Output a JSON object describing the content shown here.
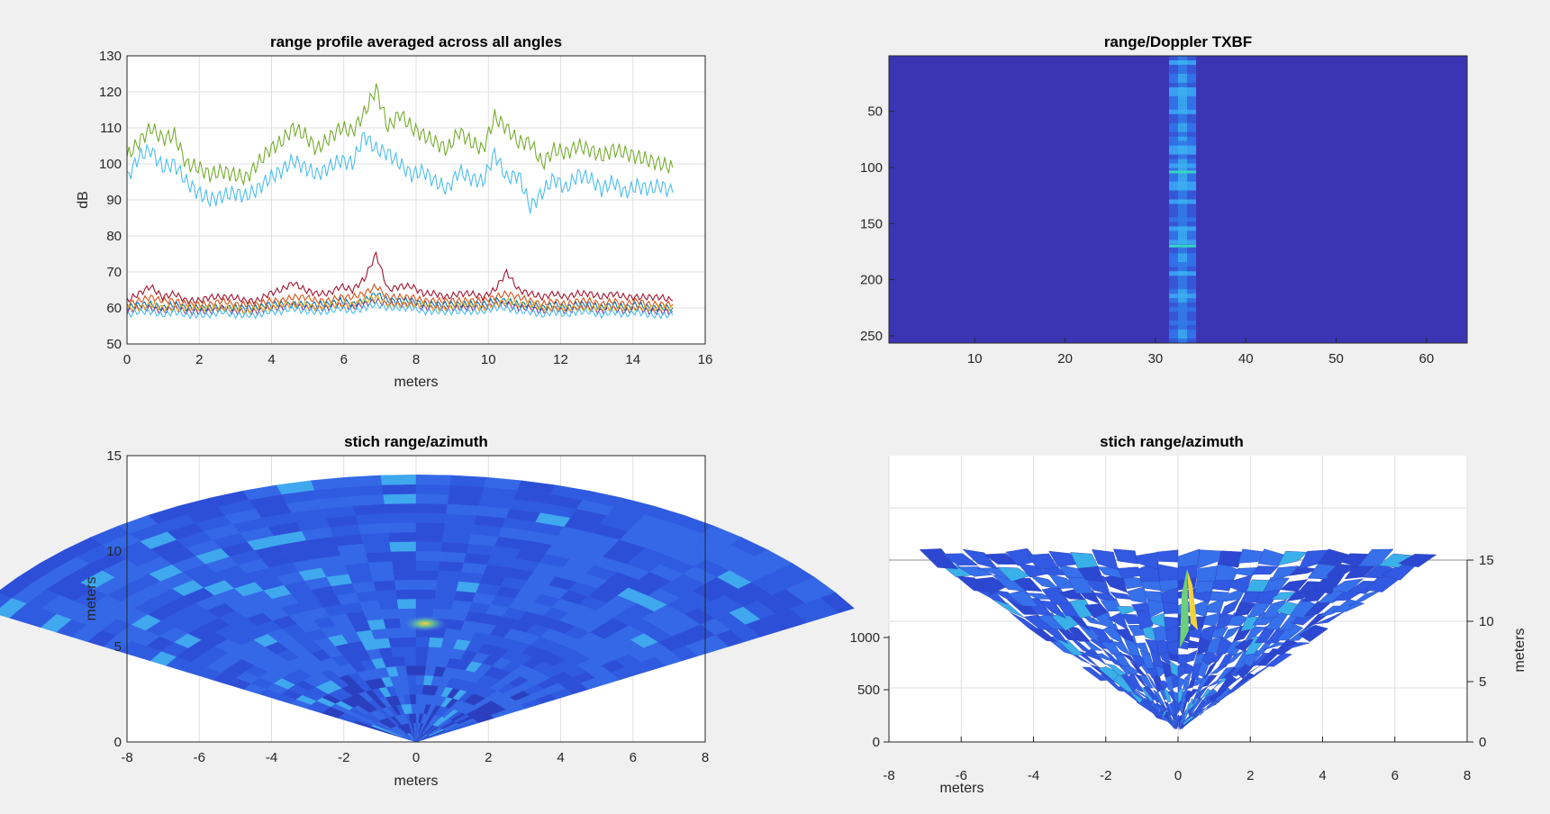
{
  "chart_data": [
    {
      "type": "line",
      "title": "range profile averaged across all angles",
      "xlabel": "meters",
      "ylabel": "dB",
      "xlim": [
        0,
        16
      ],
      "ylim": [
        50,
        130
      ],
      "xticks": [
        "0",
        "2",
        "4",
        "6",
        "8",
        "10",
        "12",
        "14",
        "16"
      ],
      "yticks": [
        "50",
        "60",
        "70",
        "80",
        "90",
        "100",
        "110",
        "120",
        "130"
      ],
      "grid": true,
      "x_end": 15.1,
      "series": [
        {
          "color": "#77ac30",
          "values": [
            102,
            106,
            110,
            107,
            108,
            100,
            99,
            97,
            98,
            97,
            96,
            100,
            104,
            106,
            110,
            108,
            104,
            107,
            110,
            109,
            114,
            121,
            110,
            114,
            110,
            108,
            106,
            104,
            109,
            106,
            104,
            113,
            110,
            106,
            106,
            100,
            104,
            103,
            105,
            104,
            102,
            104,
            103,
            102,
            101,
            100,
            99
          ]
        },
        {
          "color": "#4dbeee",
          "values": [
            96,
            102,
            104,
            99,
            100,
            95,
            92,
            90,
            91,
            92,
            91,
            93,
            96,
            98,
            101,
            99,
            97,
            99,
            101,
            100,
            108,
            104,
            103,
            100,
            97,
            98,
            95,
            93,
            98,
            96,
            95,
            103,
            96,
            97,
            88,
            92,
            96,
            93,
            97,
            96,
            93,
            95,
            92,
            94,
            93,
            94,
            92
          ]
        },
        {
          "color": "#a2142f",
          "values": [
            62,
            64,
            66,
            63,
            64,
            62,
            62,
            63,
            63,
            63,
            62,
            62,
            64,
            65,
            67,
            65,
            64,
            64,
            66,
            65,
            68,
            75,
            65,
            66,
            66,
            64,
            64,
            63,
            64,
            64,
            63,
            65,
            70,
            65,
            64,
            63,
            64,
            63,
            64,
            64,
            63,
            64,
            63,
            63,
            63,
            63,
            62
          ]
        },
        {
          "color": "#d95319",
          "values": [
            61,
            62,
            63,
            62,
            62,
            61,
            61,
            61,
            62,
            61,
            61,
            61,
            62,
            62,
            63,
            63,
            62,
            62,
            63,
            63,
            64,
            66,
            63,
            63,
            63,
            62,
            62,
            62,
            62,
            62,
            62,
            63,
            64,
            63,
            62,
            61,
            62,
            61,
            62,
            62,
            61,
            62,
            61,
            62,
            61,
            61,
            61
          ]
        },
        {
          "color": "#0072bd",
          "values": [
            60,
            61,
            61,
            60,
            61,
            60,
            60,
            60,
            60,
            60,
            60,
            60,
            61,
            61,
            61,
            61,
            61,
            61,
            62,
            61,
            62,
            64,
            62,
            62,
            62,
            61,
            61,
            61,
            61,
            61,
            61,
            62,
            62,
            61,
            61,
            60,
            61,
            60,
            61,
            61,
            60,
            61,
            60,
            61,
            60,
            60,
            60
          ]
        },
        {
          "color": "#7e2f8e",
          "values": [
            59,
            60,
            60,
            59,
            60,
            59,
            59,
            59,
            60,
            59,
            59,
            59,
            60,
            60,
            61,
            60,
            60,
            60,
            61,
            60,
            61,
            62,
            61,
            61,
            61,
            60,
            60,
            60,
            60,
            60,
            60,
            61,
            61,
            60,
            60,
            59,
            60,
            59,
            60,
            60,
            59,
            60,
            59,
            60,
            59,
            59,
            59
          ]
        },
        {
          "color": "#edb120",
          "values": [
            60,
            60,
            61,
            60,
            60,
            60,
            60,
            60,
            60,
            60,
            59,
            60,
            60,
            61,
            61,
            61,
            60,
            61,
            61,
            61,
            62,
            63,
            61,
            61,
            61,
            61,
            60,
            60,
            61,
            61,
            60,
            61,
            62,
            61,
            61,
            60,
            60,
            60,
            60,
            60,
            60,
            60,
            60,
            60,
            60,
            60,
            60
          ]
        },
        {
          "color": "#4dbeee",
          "values": [
            58,
            59,
            59,
            58,
            59,
            58,
            58,
            58,
            59,
            58,
            58,
            58,
            59,
            59,
            60,
            59,
            59,
            59,
            60,
            59,
            60,
            61,
            60,
            60,
            60,
            59,
            59,
            59,
            59,
            59,
            59,
            60,
            60,
            59,
            59,
            58,
            59,
            58,
            59,
            59,
            58,
            59,
            58,
            59,
            58,
            58,
            58
          ]
        }
      ]
    },
    {
      "type": "heatmap",
      "title": "range/Doppler TXBF",
      "xlim": [
        0.5,
        64.5
      ],
      "ylim": [
        0.5,
        256.5
      ],
      "y_reversed": true,
      "xticks": [
        "10",
        "20",
        "30",
        "40",
        "50",
        "60"
      ],
      "yticks": [
        "50",
        "100",
        "150",
        "200",
        "250"
      ],
      "background_color": "#3b35b4",
      "bright_columns": [
        32,
        34
      ],
      "bright_rows": [
        104,
        170
      ],
      "colors": {
        "low": "#3b35b4",
        "mid": "#2f6ee8",
        "high": "#35d6c0"
      }
    },
    {
      "type": "heatmap",
      "title": "stich range/azimuth",
      "ylabel": "meters",
      "xlabel": "meters",
      "xlim": [
        -8,
        8
      ],
      "ylim": [
        0,
        15
      ],
      "xticks": [
        "-8",
        "-6",
        "-4",
        "-2",
        "0",
        "2",
        "4",
        "6",
        "8"
      ],
      "yticks": [
        "0",
        "5",
        "10",
        "15"
      ],
      "grid": true,
      "sector_max_range": 14,
      "sector_half_angle_deg": 60,
      "peak": {
        "x": 0.25,
        "y": 6.2
      },
      "colors": {
        "low": "#2f4fe0",
        "mid": "#3a7ff0",
        "high": "#ffd230"
      }
    },
    {
      "type": "heatmap",
      "title": "stich range/azimuth",
      "xlabel": "meters",
      "zlabel": "meters",
      "xlim": [
        -8,
        8
      ],
      "xticks": [
        "-8",
        "-6",
        "-4",
        "-2",
        "0",
        "2",
        "4",
        "6",
        "8"
      ],
      "zticks_left": [
        "0",
        "500",
        "1000"
      ],
      "yticks_right": [
        "0",
        "5",
        "10",
        "15"
      ],
      "grid": true
    }
  ]
}
